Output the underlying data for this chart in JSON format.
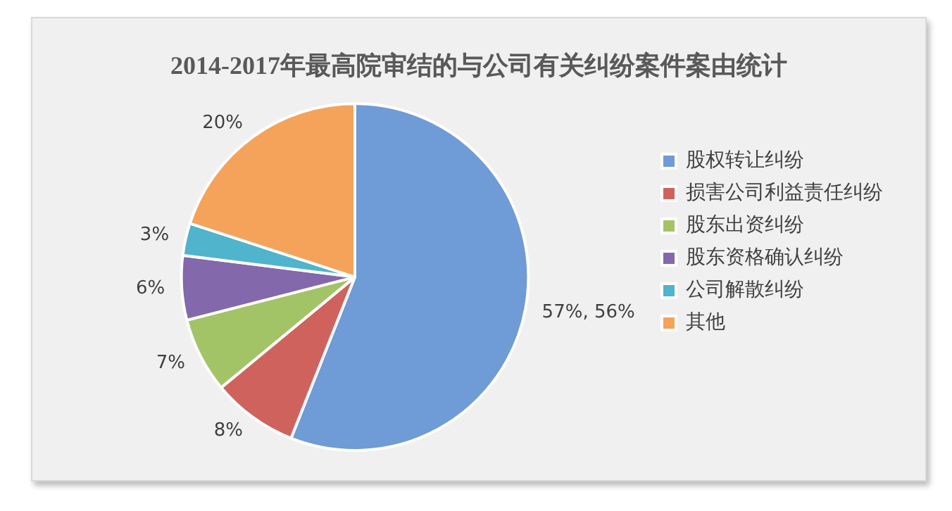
{
  "chart_data": {
    "type": "pie",
    "title": "2014-2017年最高院审结的与公司有关纠纷案件案由统计",
    "categories": [
      "股权转让纠纷",
      "损害公司利益责任纠纷",
      "股东出资纠纷",
      "股东资格确认纠纷",
      "公司解散纠纷",
      "其他"
    ],
    "values": [
      56,
      8,
      7,
      6,
      3,
      20
    ],
    "colors": [
      "#6f9bd6",
      "#d0625d",
      "#a3c466",
      "#8468ac",
      "#4fb4cc",
      "#f5a35a"
    ],
    "value_labels": [
      "57%, 56%",
      "8%",
      "7%",
      "6%",
      "3%",
      "20%"
    ],
    "legend": "right"
  }
}
